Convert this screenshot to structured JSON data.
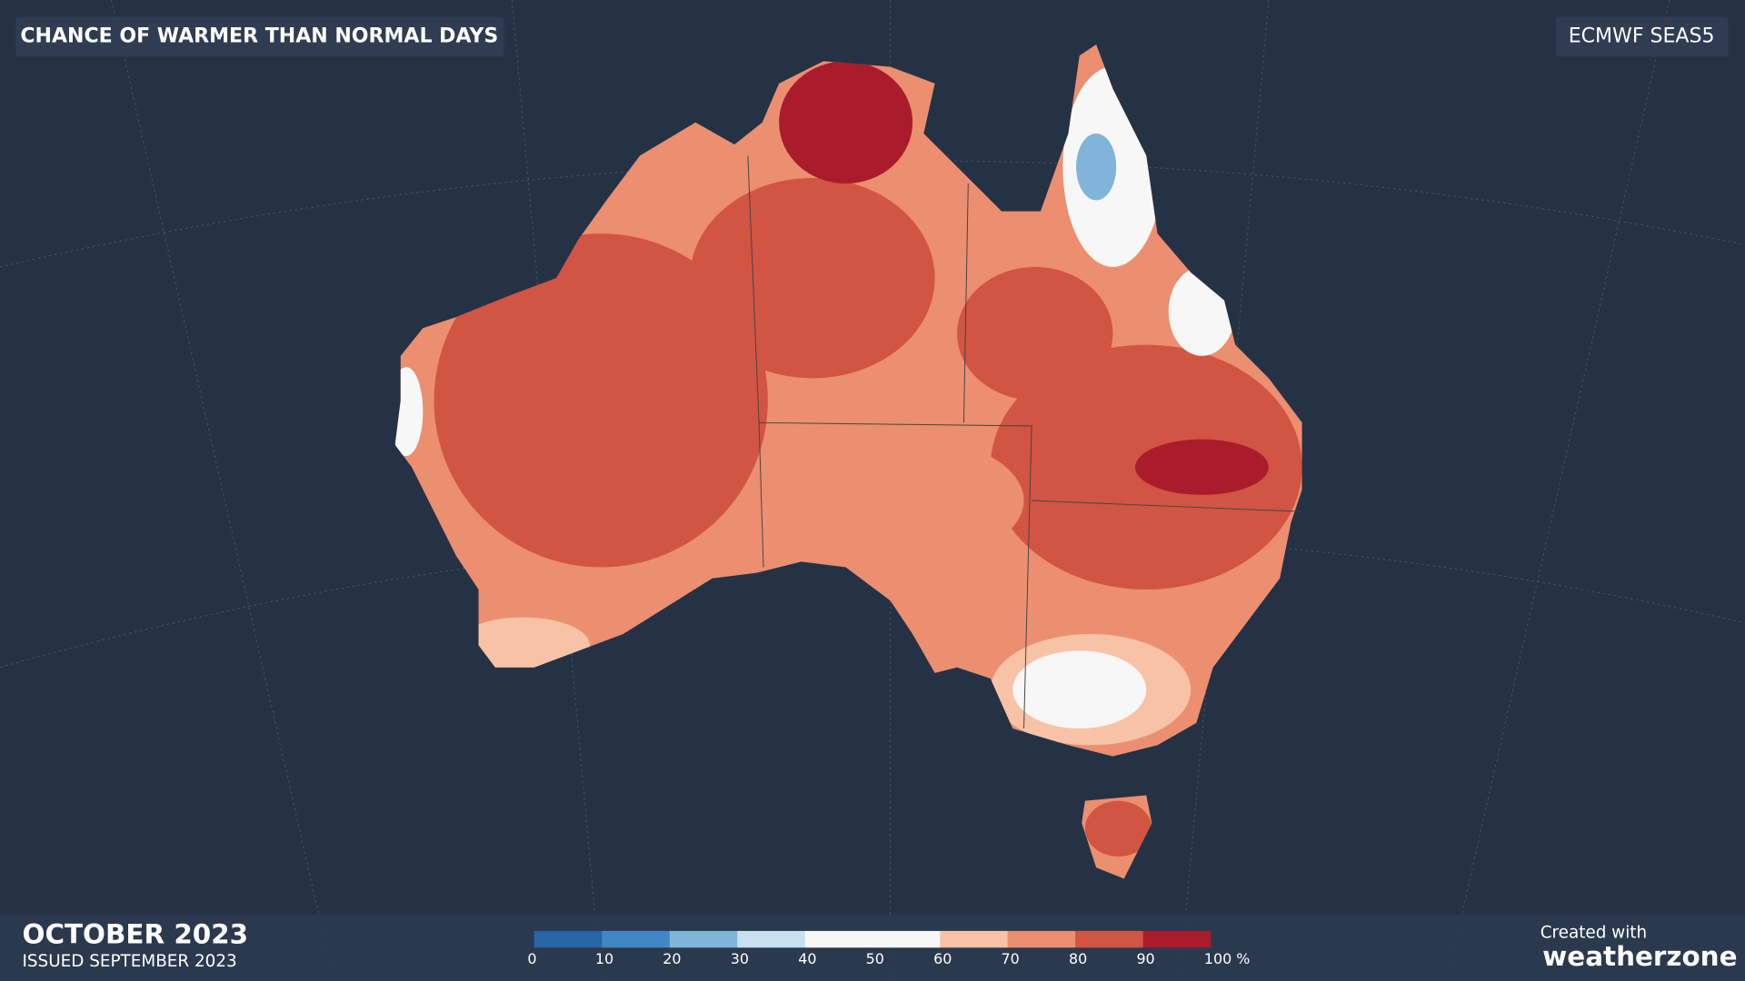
{
  "header": {
    "title": "CHANCE OF WARMER THAN NORMAL DAYS",
    "model": "ECMWF SEAS5"
  },
  "footer": {
    "period": "OCTOBER 2023",
    "issued": "ISSUED SEPTEMBER 2023",
    "credit": "Created with",
    "brand": "weatherzone"
  },
  "legend": {
    "ticks": [
      0,
      10,
      20,
      30,
      40,
      50,
      60,
      70,
      80,
      90,
      {
        "value": 100,
        "label": "100 %"
      }
    ],
    "colors": [
      "#2a65a8",
      "#3f88c5",
      "#80b4d9",
      "#c8e0f0",
      "#f7f7f7",
      "#f7f7f7",
      "#f8c2a6",
      "#eb8f70",
      "#d25443",
      "#aa1c2c"
    ]
  }
}
